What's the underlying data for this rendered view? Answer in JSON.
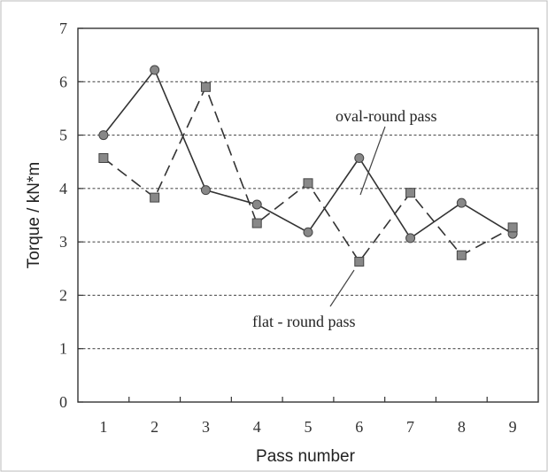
{
  "chart_data": {
    "type": "line",
    "title": "",
    "xlabel": "Pass number",
    "ylabel": "Torque / kN*m",
    "x": [
      1,
      2,
      3,
      4,
      5,
      6,
      7,
      8,
      9
    ],
    "xlim": [
      0.5,
      9.5
    ],
    "ylim": [
      0,
      7
    ],
    "yticks": [
      0,
      1,
      2,
      3,
      4,
      5,
      6,
      7
    ],
    "grid": "dashed horizontal",
    "series": [
      {
        "name": "oval-round pass",
        "marker": "circle",
        "line_style": "solid",
        "values": [
          5.0,
          6.22,
          3.97,
          3.7,
          3.18,
          4.57,
          3.07,
          3.73,
          3.15
        ]
      },
      {
        "name": "flat - round pass",
        "marker": "square",
        "line_style": "dashed",
        "values": [
          4.57,
          3.83,
          5.9,
          3.35,
          4.1,
          2.63,
          3.92,
          2.75,
          3.27
        ]
      }
    ],
    "colors": {
      "line": "#333333",
      "marker_fill": "#888888",
      "marker_stroke": "#444444",
      "grid": "#555555",
      "frame": "#333333"
    }
  }
}
